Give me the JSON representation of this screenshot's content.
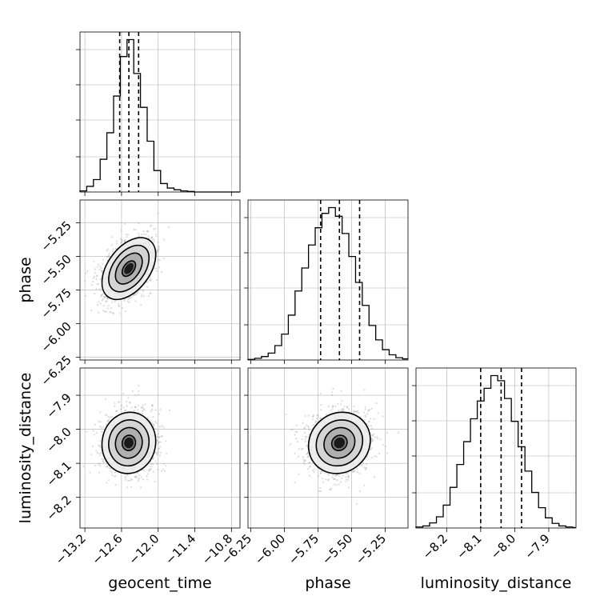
{
  "chart_data": {
    "type": "corner",
    "parameters": [
      "geocent_time",
      "phase",
      "luminosity_distance"
    ],
    "axis_labels": {
      "geocent_time": "geocent_time",
      "phase": "phase",
      "luminosity_distance": "luminosity_distance"
    },
    "ranges": {
      "geocent_time": [
        -13.28,
        -10.66
      ],
      "phase": [
        -6.27,
        -5.08
      ],
      "luminosity_distance": [
        -8.29,
        -7.82
      ]
    },
    "ticks": {
      "geocent_time": {
        "values": [
          -13.2,
          -12.6,
          -12.0,
          -11.4,
          -10.8
        ],
        "labels": [
          "−13.2",
          "−12.6",
          "−12.0",
          "−11.4",
          "−10.8"
        ]
      },
      "phase": {
        "values": [
          -6.25,
          -6.0,
          -5.75,
          -5.5,
          -5.25
        ],
        "labels": [
          "−6.25",
          "−6.00",
          "−5.75",
          "−5.50",
          "−5.25"
        ]
      },
      "luminosity_distance": {
        "values": [
          -8.2,
          -8.1,
          -8.0,
          -7.9
        ],
        "labels": [
          "−8.2",
          "−8.1",
          "−8.0",
          "−7.9"
        ]
      }
    },
    "grid": true,
    "quantiles": {
      "geocent_time": [
        -12.63,
        -12.48,
        -12.32
      ],
      "phase": [
        -5.73,
        -5.59,
        -5.44
      ],
      "luminosity_distance": [
        -8.1,
        -8.04,
        -7.98
      ]
    },
    "histograms": {
      "geocent_time": {
        "edges": [
          -13.28,
          -13.17,
          -13.06,
          -12.95,
          -12.84,
          -12.73,
          -12.62,
          -12.51,
          -12.4,
          -12.29,
          -12.18,
          -12.07,
          -11.96,
          -11.85,
          -11.74,
          -11.63,
          -11.52,
          -11.41,
          -11.3,
          -11.19,
          -11.08,
          -10.97,
          -10.86,
          -10.75,
          -10.66
        ],
        "counts": [
          2,
          10,
          22,
          58,
          105,
          170,
          240,
          270,
          210,
          150,
          90,
          38,
          15,
          7,
          4,
          2,
          1,
          0,
          0,
          0,
          0,
          0,
          0,
          0
        ]
      },
      "phase": {
        "edges": [
          -6.27,
          -6.22,
          -6.17,
          -6.12,
          -6.07,
          -6.02,
          -5.97,
          -5.92,
          -5.87,
          -5.82,
          -5.77,
          -5.72,
          -5.67,
          -5.62,
          -5.57,
          -5.52,
          -5.47,
          -5.42,
          -5.37,
          -5.32,
          -5.27,
          -5.22,
          -5.17,
          -5.12,
          -5.08
        ],
        "counts": [
          1,
          3,
          6,
          12,
          25,
          45,
          78,
          120,
          160,
          200,
          230,
          255,
          265,
          250,
          220,
          180,
          135,
          95,
          60,
          35,
          18,
          9,
          4,
          2
        ]
      },
      "luminosity_distance": {
        "edges": [
          -8.29,
          -8.27,
          -8.25,
          -8.23,
          -8.21,
          -8.19,
          -8.17,
          -8.15,
          -8.13,
          -8.11,
          -8.09,
          -8.07,
          -8.05,
          -8.03,
          -8.01,
          -7.99,
          -7.97,
          -7.95,
          -7.93,
          -7.91,
          -7.89,
          -7.87,
          -7.85,
          -7.83,
          -7.82
        ],
        "counts": [
          2,
          4,
          10,
          22,
          45,
          80,
          125,
          170,
          215,
          250,
          275,
          300,
          290,
          255,
          210,
          160,
          112,
          70,
          40,
          20,
          9,
          4,
          2,
          1
        ]
      }
    },
    "pairs": [
      {
        "x": "geocent_time",
        "y": "phase",
        "center": [
          -12.48,
          -5.59
        ],
        "sigma": [
          0.22,
          0.115
        ],
        "rho": 0.45
      },
      {
        "x": "geocent_time",
        "y": "luminosity_distance",
        "center": [
          -12.48,
          -8.04
        ],
        "sigma": [
          0.22,
          0.045
        ],
        "rho": 0.05
      },
      {
        "x": "phase",
        "y": "luminosity_distance",
        "center": [
          -5.59,
          -8.04
        ],
        "sigma": [
          0.115,
          0.045
        ],
        "rho": 0.1
      }
    ],
    "contour_levels_sigma": [
      0.5,
      1.0,
      1.5,
      2.0
    ]
  }
}
